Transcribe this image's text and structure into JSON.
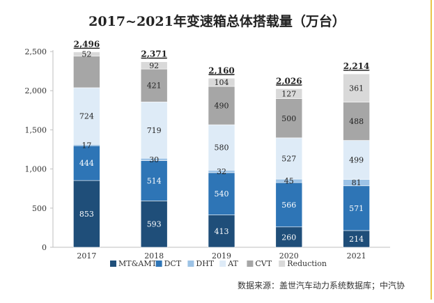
{
  "chart_data": {
    "type": "bar",
    "stacked": true,
    "title": "2017~2021年变速箱总体搭载量（万台）",
    "categories": [
      "2017",
      "2018",
      "2019",
      "2020",
      "2021"
    ],
    "series": [
      {
        "name": "MT&AMT",
        "color": "#1f4e79",
        "values": [
          853,
          593,
          413,
          260,
          214
        ]
      },
      {
        "name": "DCT",
        "color": "#2e75b6",
        "values": [
          444,
          514,
          540,
          566,
          571
        ]
      },
      {
        "name": "DHT",
        "color": "#9dc3e6",
        "values": [
          17,
          30,
          32,
          45,
          81
        ]
      },
      {
        "name": "AT",
        "color": "#deebf7",
        "values": [
          724,
          719,
          580,
          527,
          499
        ]
      },
      {
        "name": "CVT",
        "color": "#a6a6a6",
        "values": [
          405,
          421,
          490,
          500,
          488
        ]
      },
      {
        "name": "Reduction",
        "color": "#d9d9d9",
        "values": [
          52,
          92,
          104,
          127,
          361
        ]
      }
    ],
    "segment_labels": [
      [
        "853",
        "593",
        "413",
        "260",
        "214"
      ],
      [
        "444",
        "514",
        "540",
        "566",
        "571"
      ],
      [
        "17",
        "30",
        "32",
        "45",
        "81"
      ],
      [
        "724",
        "719",
        "580",
        "527",
        "499"
      ],
      [
        "",
        "421",
        "490",
        "500",
        "488"
      ],
      [
        "52",
        "92",
        "104",
        "127",
        "361"
      ]
    ],
    "totals": [
      "2,496",
      "2,371",
      "2,160",
      "2,026",
      "2,214"
    ],
    "ylim": [
      0,
      2500
    ],
    "yticks": [
      0,
      500,
      1000,
      1500,
      2000,
      2500
    ],
    "ytick_labels": [
      "0",
      "500",
      "1,000",
      "1,500",
      "2,000",
      "2,500"
    ],
    "grid": false,
    "legend": "bottom"
  },
  "source": "数据来源：盖世汽车动力系统数据库；中汽协"
}
